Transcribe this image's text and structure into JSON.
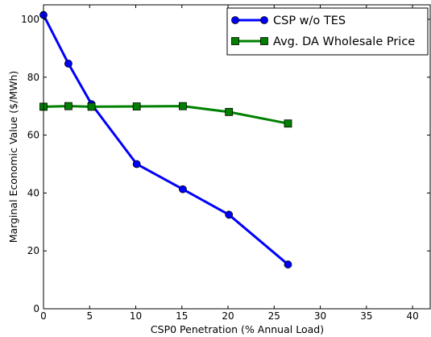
{
  "chart_data": {
    "type": "line",
    "xlabel": "CSP0 Penetration (% Annual Load)",
    "ylabel": "Marginal Economic Value ($/MWh)",
    "xlim": [
      0,
      42
    ],
    "ylim": [
      0,
      105
    ],
    "xticks": [
      0,
      5,
      10,
      15,
      20,
      25,
      30,
      35,
      40
    ],
    "yticks": [
      0,
      20,
      40,
      60,
      80,
      100
    ],
    "grid": false,
    "legend_position": "top-right",
    "series": [
      {
        "name": "CSP w/o TES",
        "color": "#0000ff",
        "marker": "circle",
        "x": [
          0,
          2.7,
          5.2,
          10.1,
          15.1,
          20.1,
          26.5
        ],
        "y": [
          101.5,
          84.7,
          70.7,
          50.0,
          41.3,
          32.5,
          15.3
        ]
      },
      {
        "name": "Avg. DA Wholesale Price",
        "color": "#008000",
        "marker": "square",
        "x": [
          0,
          2.7,
          5.2,
          10.1,
          15.1,
          20.1,
          26.5
        ],
        "y": [
          69.8,
          70.0,
          69.8,
          69.9,
          70.0,
          68.0,
          64.0
        ]
      }
    ]
  }
}
